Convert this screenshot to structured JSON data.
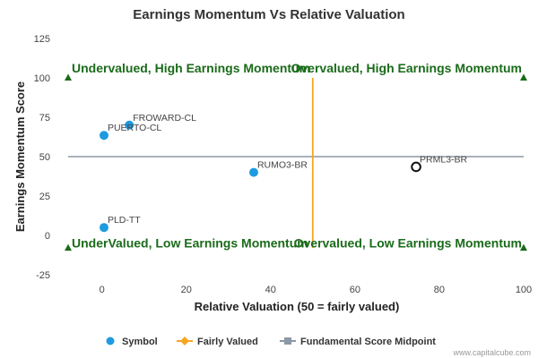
{
  "chart_data": {
    "type": "scatter",
    "title": "Earnings Momentum Vs Relative Valuation",
    "xlabel": "Relative Valuation (50 = fairly valued)",
    "ylabel": "Earnings Momentum Score",
    "xlim": [
      -8,
      100
    ],
    "ylim": [
      -25,
      125
    ],
    "xticks": [
      "0",
      "20",
      "40",
      "60",
      "80",
      "100"
    ],
    "yticks": [
      "-25",
      "0",
      "25",
      "50",
      "75",
      "100",
      "125"
    ],
    "points": [
      {
        "label": "FROWARD-CL",
        "x": 6.5,
        "y": 70
      },
      {
        "label": "PUERTO-CL",
        "x": 0.5,
        "y": 63.5
      },
      {
        "label": "RUMO3-BR",
        "x": 36,
        "y": 40
      },
      {
        "label": "PLD-TT",
        "x": 0.5,
        "y": 5
      },
      {
        "label": "PRML3-BR",
        "x": 74.5,
        "y": 43.5,
        "highlight": true
      }
    ],
    "fair_value_x": 50,
    "midpoint_y": 50,
    "quadrant_labels": {
      "top_left": "Undervalued, High Earnings Momentum",
      "top_right": "Overvalued, High Earnings Momentum",
      "bottom_left": "UnderValued, Low Earnings Momentum",
      "bottom_right": "Overvalued, Low Earnings Momentum"
    },
    "legend": [
      {
        "name": "Symbol",
        "color": "#1e9be0"
      },
      {
        "name": "Fairly Valued",
        "color": "#f5a623"
      },
      {
        "name": "Fundamental Score Midpoint",
        "color": "#8c99a6"
      }
    ],
    "legend_position": "bottom",
    "grid": false,
    "colors": {
      "symbol": "#1e9be0",
      "fair": "#f5a623",
      "midpoint": "#8c99a6",
      "quadrant": "#1a6b1a"
    }
  },
  "credit": "www.capitalcube.com"
}
